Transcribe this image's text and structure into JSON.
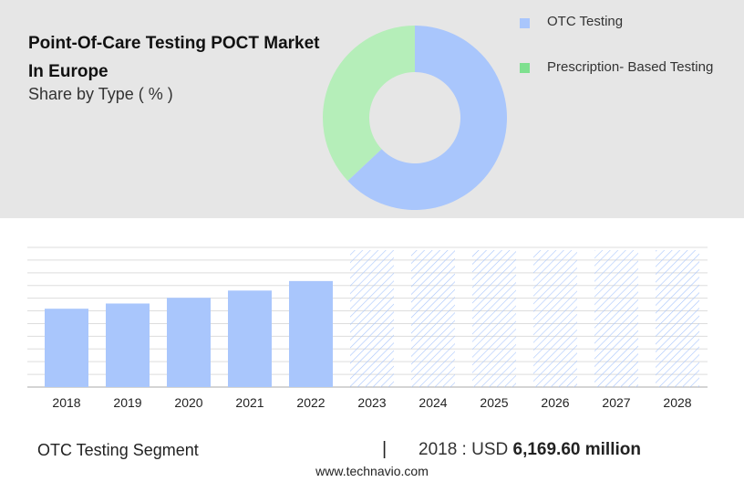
{
  "header": {
    "title": "Point-Of-Care Testing POCT Market In Europe",
    "subtitle": "Share by Type ( % )"
  },
  "colors": {
    "otc": "#a9c6fc",
    "prescription": "#b5eeb9",
    "legend_prescription": "#7ee08f",
    "forecast_hatch": "#a9c6fc",
    "grid": "#dddddd",
    "panel": "#e6e6e6"
  },
  "chart_data": [
    {
      "type": "pie",
      "donut": true,
      "title": "Share by Type ( % )",
      "series": [
        {
          "name": "OTC Testing",
          "value": 63
        },
        {
          "name": "Prescription- Based Testing",
          "value": 37
        }
      ],
      "legend_position": "right"
    },
    {
      "type": "bar",
      "categories": [
        "2018",
        "2019",
        "2020",
        "2021",
        "2022",
        "2023",
        "2024",
        "2025",
        "2026",
        "2027",
        "2028"
      ],
      "values": [
        6.17,
        6.58,
        7.03,
        7.6,
        8.35,
        null,
        null,
        null,
        null,
        null,
        null
      ],
      "forecast_categories": [
        "2023",
        "2024",
        "2025",
        "2026",
        "2027",
        "2028"
      ],
      "ylim": [
        0,
        11
      ],
      "grid": true,
      "xlabel": "",
      "ylabel": ""
    }
  ],
  "footer": {
    "segment": "OTC Testing Segment",
    "separator": "|",
    "year_prefix": "2018 : USD ",
    "value": "6,169.60 million",
    "source": "www.technavio.com"
  }
}
